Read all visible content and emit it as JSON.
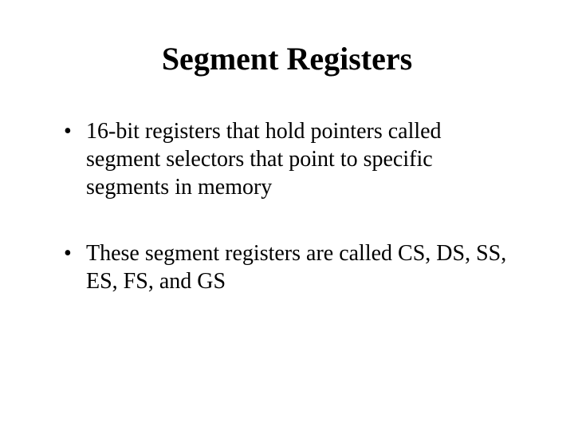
{
  "slide": {
    "title": "Segment Registers",
    "title_fontsize": 40,
    "title_fontweight": "bold",
    "body_fontsize": 28,
    "font_family": "Times New Roman",
    "background_color": "#ffffff",
    "text_color": "#000000",
    "bullets": [
      {
        "text": "16-bit registers that hold pointers called segment selectors that point to specific segments in memory"
      },
      {
        "text": "These segment registers are called CS, DS, SS, ES, FS, and GS"
      }
    ]
  }
}
